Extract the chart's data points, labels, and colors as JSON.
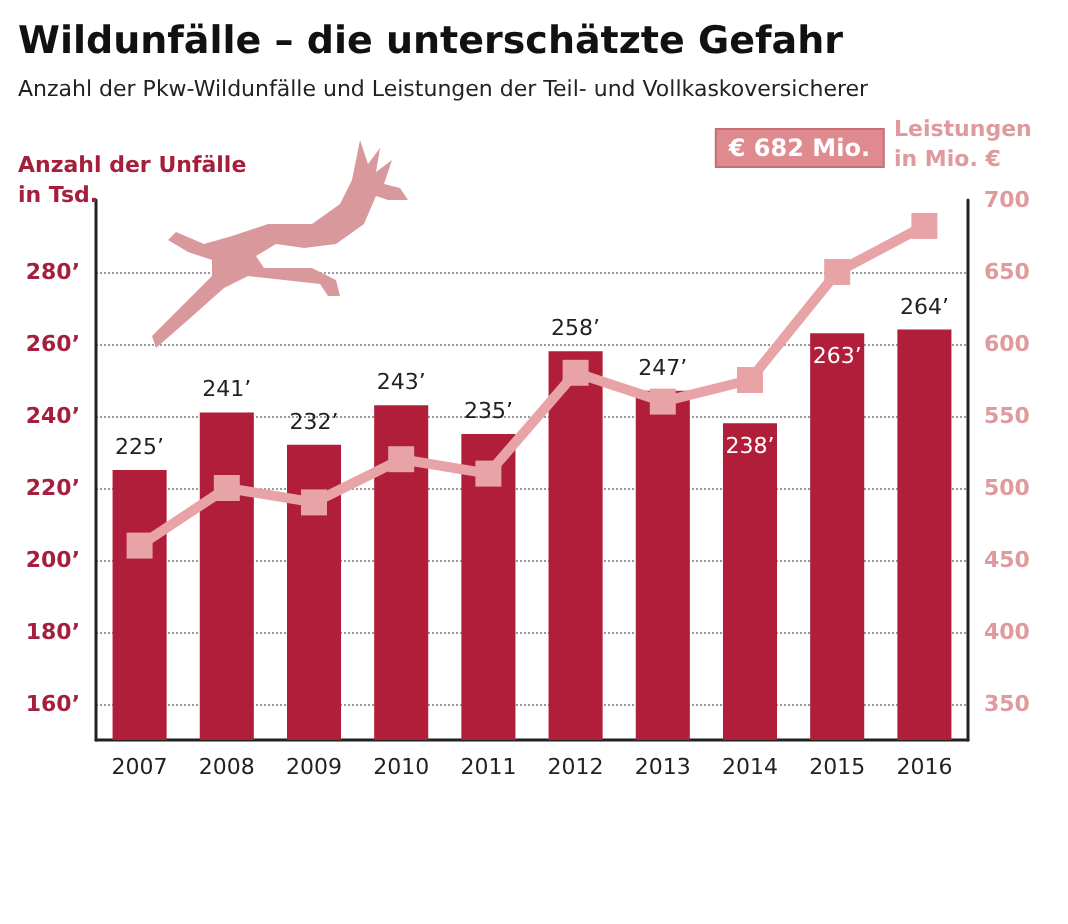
{
  "chart_data": {
    "type": "bar",
    "title": "Wildunfälle – die unterschätzte Gefahr",
    "subtitle": "Anzahl der Pkw-Wildunfälle und Leistungen der Teil- und Vollkaskoversicherer",
    "ylabel": "Anzahl der Unfälle in Tsd.",
    "y2label": "Leistungen in Mio. €",
    "categories": [
      "2007",
      "2008",
      "2009",
      "2010",
      "2011",
      "2012",
      "2013",
      "2014",
      "2015",
      "2016"
    ],
    "series": [
      {
        "color": "#b01e3a",
        "values": [
          225,
          241,
          232,
          243,
          235,
          258,
          247,
          238,
          263,
          264
        ],
        "value_labels": [
          "225’",
          "241’",
          "232’",
          "243’",
          "235’",
          "258’",
          "247’",
          "238’",
          "263’",
          "264’"
        ]
      },
      {
        "type": "line",
        "axis": "y2",
        "color": "#e8a3a6",
        "values": [
          460,
          500,
          490,
          520,
          510,
          580,
          560,
          575,
          650,
          682
        ]
      }
    ],
    "ylim": [
      150,
      300
    ],
    "yticks": [
      {
        "value": 160,
        "label": "160’"
      },
      {
        "value": 180,
        "label": "180’"
      },
      {
        "value": 200,
        "label": "200’"
      },
      {
        "value": 220,
        "label": "220’"
      },
      {
        "value": 240,
        "label": "240’"
      },
      {
        "value": 260,
        "label": "260’"
      },
      {
        "value": 280,
        "label": "280’"
      }
    ],
    "y2lim": [
      325,
      700
    ],
    "y2ticks": [
      350,
      400,
      450,
      500,
      550,
      600,
      650,
      700
    ],
    "annotations": [
      "€ 682 Mio."
    ],
    "grid": "y",
    "marker": "square",
    "line_style": "solid"
  }
}
